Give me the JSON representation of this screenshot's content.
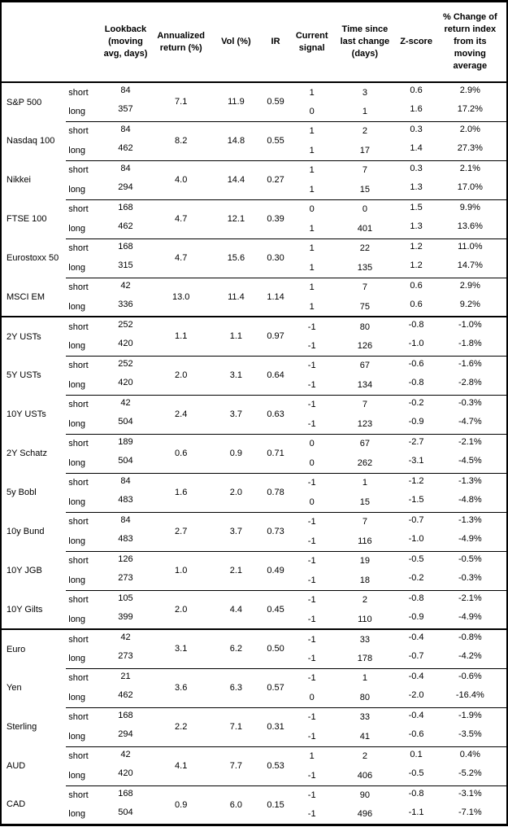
{
  "colors": {
    "text": "#000000",
    "background": "#ffffff",
    "border": "#000000"
  },
  "columns": {
    "asset": "",
    "horizon": "",
    "lookback": "Lookback\n(moving\navg, days)",
    "ann_return": "Annualized\nreturn (%)",
    "vol": "Vol (%)",
    "ir": "IR",
    "signal": "Current\nsignal",
    "time_since": "Time since\nlast change\n(days)",
    "zscore": "Z-score",
    "pct_change": "% Change of\nreturn index\nfrom its\nmoving\naverage"
  },
  "table": {
    "groups": [
      {
        "assets": [
          {
            "name": "S&P 500",
            "ann_return": "7.1",
            "vol": "11.9",
            "ir": "0.59",
            "rows": [
              {
                "horizon": "short",
                "lookback": "84",
                "signal": "1",
                "time_since": "3",
                "zscore": "0.6",
                "pct_change": "2.9%"
              },
              {
                "horizon": "long",
                "lookback": "357",
                "signal": "0",
                "time_since": "1",
                "zscore": "1.6",
                "pct_change": "17.2%"
              }
            ]
          },
          {
            "name": "Nasdaq 100",
            "ann_return": "8.2",
            "vol": "14.8",
            "ir": "0.55",
            "rows": [
              {
                "horizon": "short",
                "lookback": "84",
                "signal": "1",
                "time_since": "2",
                "zscore": "0.3",
                "pct_change": "2.0%"
              },
              {
                "horizon": "long",
                "lookback": "462",
                "signal": "1",
                "time_since": "17",
                "zscore": "1.4",
                "pct_change": "27.3%"
              }
            ]
          },
          {
            "name": "Nikkei",
            "ann_return": "4.0",
            "vol": "14.4",
            "ir": "0.27",
            "rows": [
              {
                "horizon": "short",
                "lookback": "84",
                "signal": "1",
                "time_since": "7",
                "zscore": "0.3",
                "pct_change": "2.1%"
              },
              {
                "horizon": "long",
                "lookback": "294",
                "signal": "1",
                "time_since": "15",
                "zscore": "1.3",
                "pct_change": "17.0%"
              }
            ]
          },
          {
            "name": "FTSE 100",
            "ann_return": "4.7",
            "vol": "12.1",
            "ir": "0.39",
            "rows": [
              {
                "horizon": "short",
                "lookback": "168",
                "signal": "0",
                "time_since": "0",
                "zscore": "1.5",
                "pct_change": "9.9%"
              },
              {
                "horizon": "long",
                "lookback": "462",
                "signal": "1",
                "time_since": "401",
                "zscore": "1.3",
                "pct_change": "13.6%"
              }
            ]
          },
          {
            "name": "Eurostoxx 50",
            "ann_return": "4.7",
            "vol": "15.6",
            "ir": "0.30",
            "rows": [
              {
                "horizon": "short",
                "lookback": "168",
                "signal": "1",
                "time_since": "22",
                "zscore": "1.2",
                "pct_change": "11.0%"
              },
              {
                "horizon": "long",
                "lookback": "315",
                "signal": "1",
                "time_since": "135",
                "zscore": "1.2",
                "pct_change": "14.7%"
              }
            ]
          },
          {
            "name": "MSCI EM",
            "ann_return": "13.0",
            "vol": "11.4",
            "ir": "1.14",
            "rows": [
              {
                "horizon": "short",
                "lookback": "42",
                "signal": "1",
                "time_since": "7",
                "zscore": "0.6",
                "pct_change": "2.9%"
              },
              {
                "horizon": "long",
                "lookback": "336",
                "signal": "1",
                "time_since": "75",
                "zscore": "0.6",
                "pct_change": "9.2%"
              }
            ]
          }
        ]
      },
      {
        "assets": [
          {
            "name": "2Y USTs",
            "ann_return": "1.1",
            "vol": "1.1",
            "ir": "0.97",
            "rows": [
              {
                "horizon": "short",
                "lookback": "252",
                "signal": "-1",
                "time_since": "80",
                "zscore": "-0.8",
                "pct_change": "-1.0%"
              },
              {
                "horizon": "long",
                "lookback": "420",
                "signal": "-1",
                "time_since": "126",
                "zscore": "-1.0",
                "pct_change": "-1.8%"
              }
            ]
          },
          {
            "name": "5Y USTs",
            "ann_return": "2.0",
            "vol": "3.1",
            "ir": "0.64",
            "rows": [
              {
                "horizon": "short",
                "lookback": "252",
                "signal": "-1",
                "time_since": "67",
                "zscore": "-0.6",
                "pct_change": "-1.6%"
              },
              {
                "horizon": "long",
                "lookback": "420",
                "signal": "-1",
                "time_since": "134",
                "zscore": "-0.8",
                "pct_change": "-2.8%"
              }
            ]
          },
          {
            "name": "10Y USTs",
            "ann_return": "2.4",
            "vol": "3.7",
            "ir": "0.63",
            "rows": [
              {
                "horizon": "short",
                "lookback": "42",
                "signal": "-1",
                "time_since": "7",
                "zscore": "-0.2",
                "pct_change": "-0.3%"
              },
              {
                "horizon": "long",
                "lookback": "504",
                "signal": "-1",
                "time_since": "123",
                "zscore": "-0.9",
                "pct_change": "-4.7%"
              }
            ]
          },
          {
            "name": "2Y Schatz",
            "ann_return": "0.6",
            "vol": "0.9",
            "ir": "0.71",
            "rows": [
              {
                "horizon": "short",
                "lookback": "189",
                "signal": "0",
                "time_since": "67",
                "zscore": "-2.7",
                "pct_change": "-2.1%"
              },
              {
                "horizon": "long",
                "lookback": "504",
                "signal": "0",
                "time_since": "262",
                "zscore": "-3.1",
                "pct_change": "-4.5%"
              }
            ]
          },
          {
            "name": "5y Bobl",
            "ann_return": "1.6",
            "vol": "2.0",
            "ir": "0.78",
            "rows": [
              {
                "horizon": "short",
                "lookback": "84",
                "signal": "-1",
                "time_since": "1",
                "zscore": "-1.2",
                "pct_change": "-1.3%"
              },
              {
                "horizon": "long",
                "lookback": "483",
                "signal": "0",
                "time_since": "15",
                "zscore": "-1.5",
                "pct_change": "-4.8%"
              }
            ]
          },
          {
            "name": "10y Bund",
            "ann_return": "2.7",
            "vol": "3.7",
            "ir": "0.73",
            "rows": [
              {
                "horizon": "short",
                "lookback": "84",
                "signal": "-1",
                "time_since": "7",
                "zscore": "-0.7",
                "pct_change": "-1.3%"
              },
              {
                "horizon": "long",
                "lookback": "483",
                "signal": "-1",
                "time_since": "116",
                "zscore": "-1.0",
                "pct_change": "-4.9%"
              }
            ]
          },
          {
            "name": "10Y JGB",
            "ann_return": "1.0",
            "vol": "2.1",
            "ir": "0.49",
            "rows": [
              {
                "horizon": "short",
                "lookback": "126",
                "signal": "-1",
                "time_since": "19",
                "zscore": "-0.5",
                "pct_change": "-0.5%"
              },
              {
                "horizon": "long",
                "lookback": "273",
                "signal": "-1",
                "time_since": "18",
                "zscore": "-0.2",
                "pct_change": "-0.3%"
              }
            ]
          },
          {
            "name": "10Y Gilts",
            "ann_return": "2.0",
            "vol": "4.4",
            "ir": "0.45",
            "rows": [
              {
                "horizon": "short",
                "lookback": "105",
                "signal": "-1",
                "time_since": "2",
                "zscore": "-0.8",
                "pct_change": "-2.1%"
              },
              {
                "horizon": "long",
                "lookback": "399",
                "signal": "-1",
                "time_since": "110",
                "zscore": "-0.9",
                "pct_change": "-4.9%"
              }
            ]
          }
        ]
      },
      {
        "assets": [
          {
            "name": "Euro",
            "ann_return": "3.1",
            "vol": "6.2",
            "ir": "0.50",
            "rows": [
              {
                "horizon": "short",
                "lookback": "42",
                "signal": "-1",
                "time_since": "33",
                "zscore": "-0.4",
                "pct_change": "-0.8%"
              },
              {
                "horizon": "long",
                "lookback": "273",
                "signal": "-1",
                "time_since": "178",
                "zscore": "-0.7",
                "pct_change": "-4.2%"
              }
            ]
          },
          {
            "name": "Yen",
            "ann_return": "3.6",
            "vol": "6.3",
            "ir": "0.57",
            "rows": [
              {
                "horizon": "short",
                "lookback": "21",
                "signal": "-1",
                "time_since": "1",
                "zscore": "-0.4",
                "pct_change": "-0.6%"
              },
              {
                "horizon": "long",
                "lookback": "462",
                "signal": "0",
                "time_since": "80",
                "zscore": "-2.0",
                "pct_change": "-16.4%"
              }
            ]
          },
          {
            "name": "Sterling",
            "ann_return": "2.2",
            "vol": "7.1",
            "ir": "0.31",
            "rows": [
              {
                "horizon": "short",
                "lookback": "168",
                "signal": "-1",
                "time_since": "33",
                "zscore": "-0.4",
                "pct_change": "-1.9%"
              },
              {
                "horizon": "long",
                "lookback": "294",
                "signal": "-1",
                "time_since": "41",
                "zscore": "-0.6",
                "pct_change": "-3.5%"
              }
            ]
          },
          {
            "name": "AUD",
            "ann_return": "4.1",
            "vol": "7.7",
            "ir": "0.53",
            "rows": [
              {
                "horizon": "short",
                "lookback": "42",
                "signal": "1",
                "time_since": "2",
                "zscore": "0.1",
                "pct_change": "0.4%"
              },
              {
                "horizon": "long",
                "lookback": "420",
                "signal": "-1",
                "time_since": "406",
                "zscore": "-0.5",
                "pct_change": "-5.2%"
              }
            ]
          },
          {
            "name": "CAD",
            "ann_return": "0.9",
            "vol": "6.0",
            "ir": "0.15",
            "rows": [
              {
                "horizon": "short",
                "lookback": "168",
                "signal": "-1",
                "time_since": "90",
                "zscore": "-0.8",
                "pct_change": "-3.1%"
              },
              {
                "horizon": "long",
                "lookback": "504",
                "signal": "-1",
                "time_since": "496",
                "zscore": "-1.1",
                "pct_change": "-7.1%"
              }
            ]
          }
        ]
      }
    ]
  }
}
